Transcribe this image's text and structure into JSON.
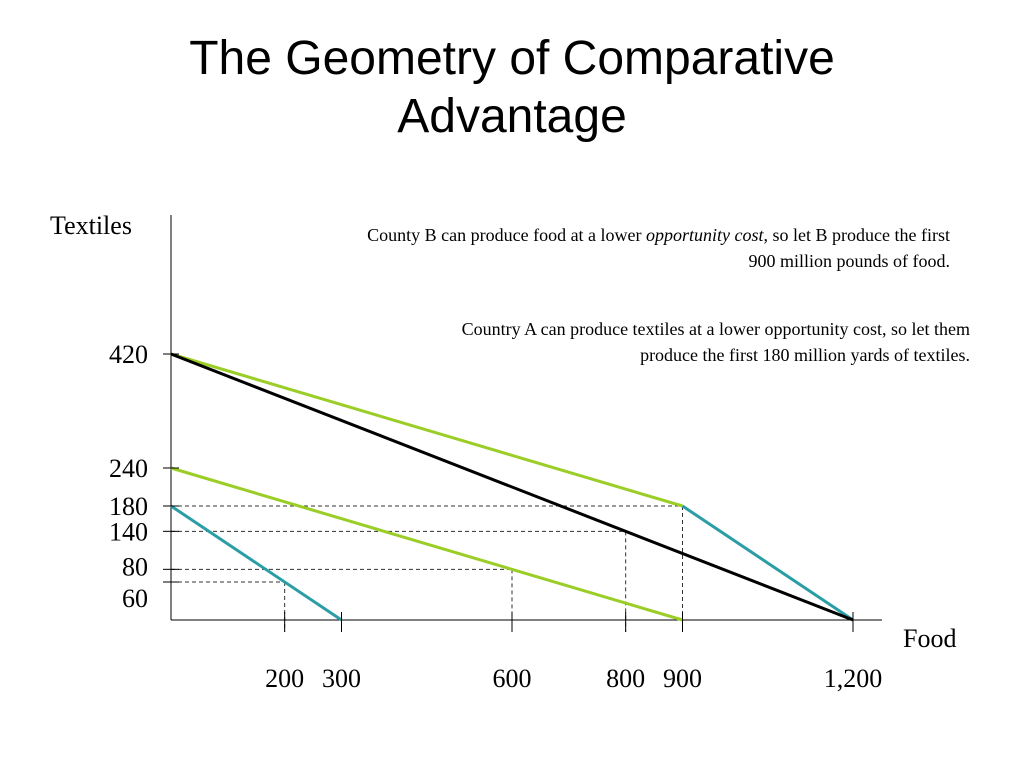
{
  "title_line1": "The Geometry of Comparative",
  "title_line2": "Advantage",
  "notes": {
    "b_pre": "County B can produce food at a lower ",
    "b_em": "opportunity cost",
    "b_post": ", so let B produce the first",
    "b_line2": "900 million pounds of food.",
    "a_line1": "Country A can produce textiles at a lower opportunity cost, so let them",
    "a_line2": "produce the first 180 million yards of textiles."
  },
  "chart_data": {
    "type": "line",
    "xlabel": "Food",
    "ylabel": "Textiles",
    "xlim": [
      0,
      1250
    ],
    "ylim": [
      0,
      460
    ],
    "x_ticks": [
      {
        "value": 200,
        "label": "200"
      },
      {
        "value": 300,
        "label": "300"
      },
      {
        "value": 600,
        "label": "600"
      },
      {
        "value": 800,
        "label": "800"
      },
      {
        "value": 900,
        "label": "900"
      },
      {
        "value": 1200,
        "label": "1,200"
      }
    ],
    "y_ticks": [
      {
        "value": 420,
        "label": "420"
      },
      {
        "value": 240,
        "label": "240"
      },
      {
        "value": 180,
        "label": "180"
      },
      {
        "value": 140,
        "label": "140"
      },
      {
        "value": 80,
        "label": "80"
      },
      {
        "value": 60,
        "label": "60"
      }
    ],
    "series": [
      {
        "color": "#9acd25",
        "points": [
          [
            0,
            240
          ],
          [
            900,
            0
          ]
        ]
      },
      {
        "color": "#2a9da5",
        "points": [
          [
            0,
            180
          ],
          [
            300,
            0
          ]
        ]
      },
      {
        "color": "#9acd25",
        "points": [
          [
            0,
            420
          ],
          [
            900,
            180
          ]
        ]
      },
      {
        "color": "#2a9da5",
        "points": [
          [
            900,
            180
          ],
          [
            1200,
            0
          ]
        ]
      },
      {
        "color": "#000000",
        "points": [
          [
            0,
            420
          ],
          [
            1200,
            0
          ]
        ]
      }
    ],
    "guides": [
      {
        "x": 200,
        "y": 60
      },
      {
        "x": 600,
        "y": 80
      },
      {
        "x": 800,
        "y": 140
      },
      {
        "x": 900,
        "y": 180
      }
    ]
  }
}
